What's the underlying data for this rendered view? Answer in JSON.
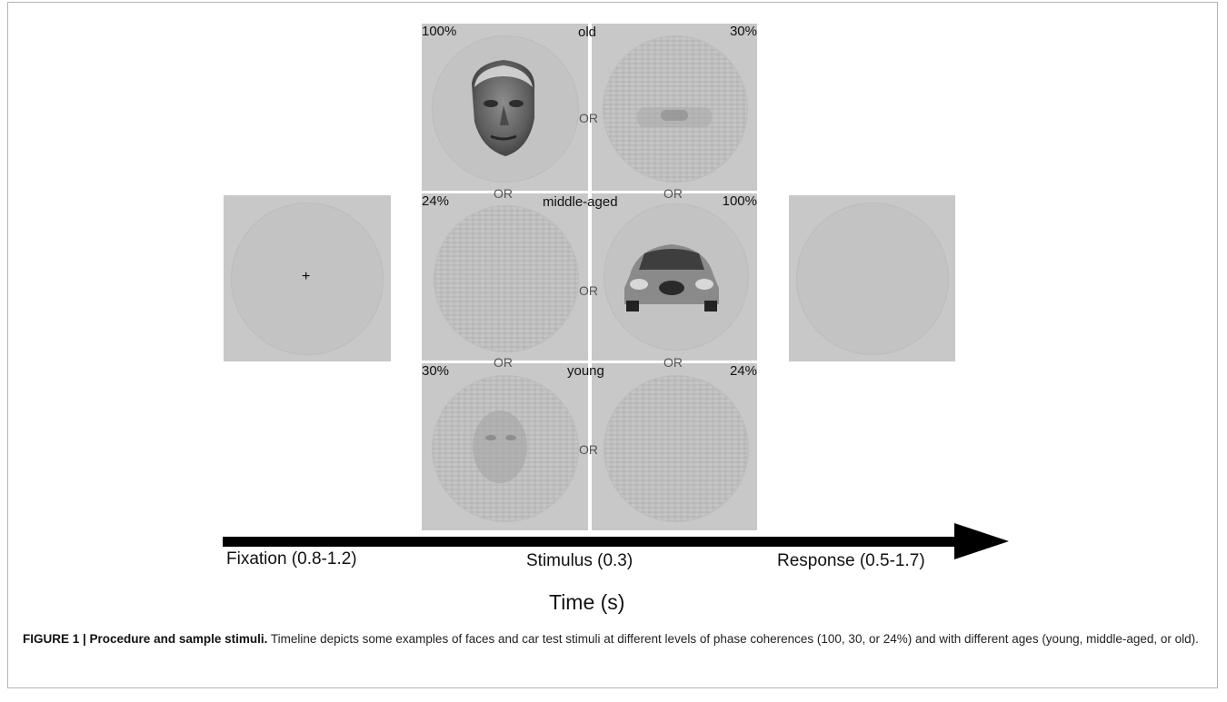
{
  "stimuli": {
    "rows": [
      {
        "label": "old",
        "left_pct": "100%",
        "right_pct": "30%",
        "or_mid": "OR"
      },
      {
        "label": "middle-aged",
        "left_pct": "24%",
        "right_pct": "100%",
        "or_mid": "OR"
      },
      {
        "label": "young",
        "left_pct": "30%",
        "right_pct": "24%",
        "or_mid": "OR"
      }
    ],
    "or_between": "OR"
  },
  "fixation": {
    "symbol": "+"
  },
  "timeline": {
    "fixation": "Fixation (0.8-1.2)",
    "stimulus": "Stimulus (0.3)",
    "response": "Response (0.5-1.7)",
    "axis_title": "Time (s)"
  },
  "caption": {
    "label": "FIGURE 1 | Procedure and sample stimuli.",
    "text": " Timeline depicts some examples of faces and car test stimuli at different levels of phase coherences (100, 30, or 24%) and with different ages (young, middle-aged, or old)."
  }
}
